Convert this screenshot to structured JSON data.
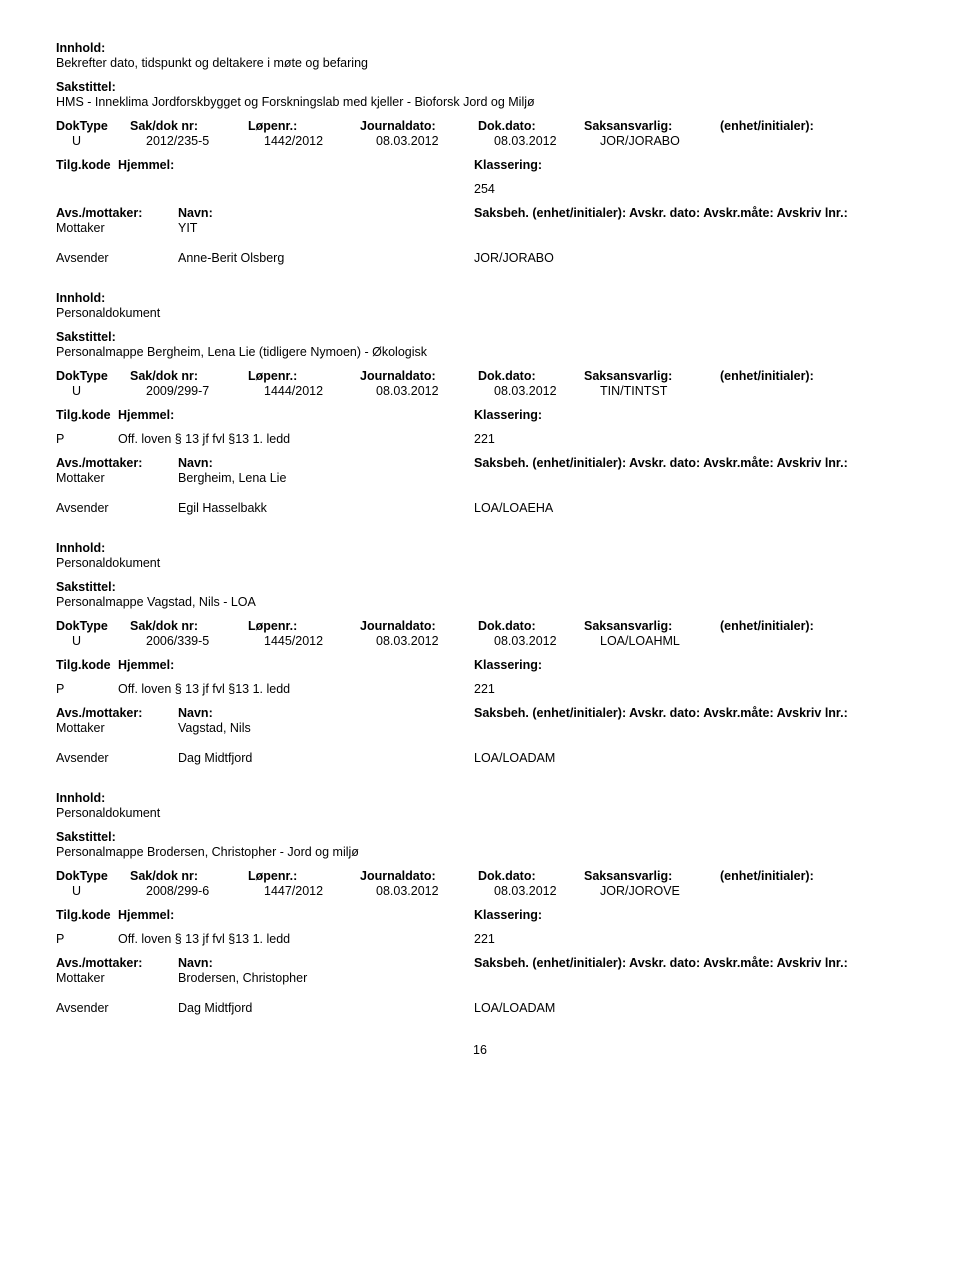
{
  "labels": {
    "innhold": "Innhold:",
    "sakstittel": "Sakstittel:",
    "dokType": "DokType",
    "sakDokNr": "Sak/dok nr:",
    "lopenr": "Løpenr.:",
    "journaldato": "Journaldato:",
    "dokDato": "Dok.dato:",
    "saksansvarlig": "Saksansvarlig:",
    "enhetInit": "(enhet/initialer):",
    "tilgKode": "Tilg.kode",
    "hjemmel": "Hjemmel:",
    "klassering": "Klassering:",
    "avsMottaker": "Avs./mottaker:",
    "navn": "Navn:",
    "saksbehRest": "Saksbeh. (enhet/initialer): Avskr. dato: Avskr.måte: Avskriv lnr.:",
    "mottaker": "Mottaker",
    "avsender": "Avsender"
  },
  "entries": [
    {
      "innhold": "Bekrefter dato, tidspunkt og deltakere i møte og befaring",
      "sakstittel": "HMS - Inneklima Jordforskbygget og Forskningslab med kjeller - Bioforsk Jord og Miljø",
      "dokTypeLetter": "U",
      "sakDokNr": "2012/235-5",
      "lopenr": "1442/2012",
      "journaldato": "08.03.2012",
      "dokDato": "08.03.2012",
      "saksansvarlig": "JOR/JORABO",
      "tilgKode": "",
      "hjemmel": "",
      "klassering": "254",
      "mottakerName": "YIT",
      "avsenderName": "Anne-Berit Olsberg",
      "avsenderCode": "JOR/JORABO"
    },
    {
      "innhold": "Personaldokument",
      "sakstittel": "Personalmappe Bergheim, Lena Lie (tidligere Nymoen) - Økologisk",
      "dokTypeLetter": "U",
      "sakDokNr": "2009/299-7",
      "lopenr": "1444/2012",
      "journaldato": "08.03.2012",
      "dokDato": "08.03.2012",
      "saksansvarlig": "TIN/TINTST",
      "tilgKode": "P",
      "hjemmel": "Off. loven § 13 jf fvl §13 1. ledd",
      "klassering": "221",
      "mottakerName": "Bergheim, Lena Lie",
      "avsenderName": "Egil Hasselbakk",
      "avsenderCode": "LOA/LOAEHA"
    },
    {
      "innhold": "Personaldokument",
      "sakstittel": "Personalmappe  Vagstad, Nils - LOA",
      "dokTypeLetter": "U",
      "sakDokNr": "2006/339-5",
      "lopenr": "1445/2012",
      "journaldato": "08.03.2012",
      "dokDato": "08.03.2012",
      "saksansvarlig": "LOA/LOAHML",
      "tilgKode": "P",
      "hjemmel": "Off. loven § 13 jf fvl §13 1. ledd",
      "klassering": "221",
      "mottakerName": "Vagstad, Nils",
      "avsenderName": "Dag Midtfjord",
      "avsenderCode": "LOA/LOADAM"
    },
    {
      "innhold": "Personaldokument",
      "sakstittel": "Personalmappe Brodersen, Christopher - Jord og miljø",
      "dokTypeLetter": "U",
      "sakDokNr": "2008/299-6",
      "lopenr": "1447/2012",
      "journaldato": "08.03.2012",
      "dokDato": "08.03.2012",
      "saksansvarlig": "JOR/JOROVE",
      "tilgKode": "P",
      "hjemmel": "Off. loven § 13 jf fvl §13 1. ledd",
      "klassering": "221",
      "mottakerName": "Brodersen, Christopher",
      "avsenderName": "Dag Midtfjord",
      "avsenderCode": "LOA/LOADAM"
    }
  ],
  "pageNumber": "16",
  "style": {
    "background": "#ffffff",
    "text": "#000000",
    "fontFamily": "Verdana, Geneva, sans-serif",
    "baseFontSizePt": 9.5,
    "pageWidthPx": 960,
    "pageHeightPx": 1265
  }
}
